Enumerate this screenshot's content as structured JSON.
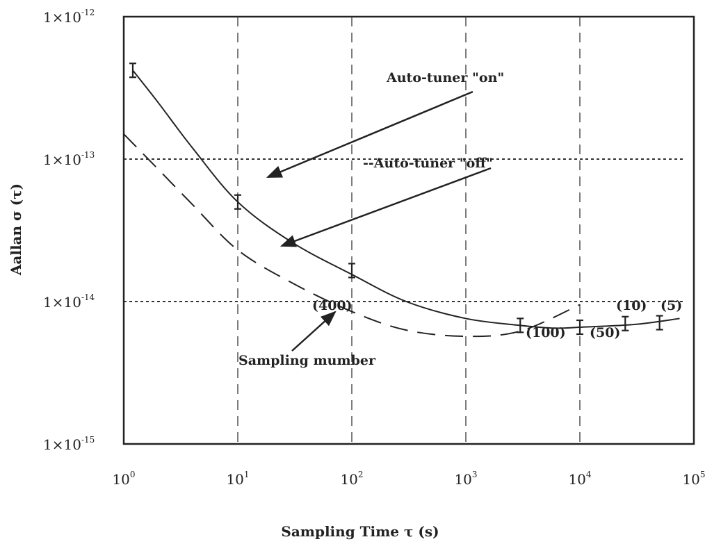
{
  "chart_data": {
    "type": "line",
    "title": "",
    "xlabel": "Sampling Time  τ (s)",
    "ylabel": "Aallan σ (τ)",
    "xscale": "log",
    "yscale": "log",
    "xlim": [
      1,
      100000
    ],
    "ylim": [
      1e-15,
      1e-12
    ],
    "grid": "vertical dashed at decades",
    "x_ticks": [
      {
        "base": "10",
        "exp": "0"
      },
      {
        "base": "10",
        "exp": "1"
      },
      {
        "base": "10",
        "exp": "2"
      },
      {
        "base": "10",
        "exp": "3"
      },
      {
        "base": "10",
        "exp": "4"
      },
      {
        "base": "10",
        "exp": "5"
      }
    ],
    "y_ticks": [
      {
        "base": "1×10",
        "exp": "-12"
      },
      {
        "base": "1×10",
        "exp": "-13"
      },
      {
        "base": "1×10",
        "exp": "-14"
      },
      {
        "base": "1×10",
        "exp": "-15"
      }
    ],
    "series": [
      {
        "name": "Auto-tuner \"on\"",
        "style": "solid",
        "x": [
          1.2,
          2,
          4,
          10,
          30,
          100,
          300,
          1000,
          3000,
          6000,
          10000,
          30000,
          75000
        ],
        "y": [
          4.2e-13,
          2.5e-13,
          1.2e-13,
          5e-14,
          2.6e-14,
          1.55e-14,
          1e-14,
          7.6e-15,
          6.8e-15,
          6.5e-15,
          6.6e-15,
          6.9e-15,
          7.6e-15
        ],
        "error_bars": {
          "x": [
            1.2,
            10,
            100,
            3000,
            10000,
            25000,
            50000
          ],
          "y": [
            4.2e-13,
            5e-14,
            1.65e-14,
            6.8e-15,
            6.6e-15,
            7e-15,
            7.1e-15
          ]
        }
      },
      {
        "name": "Auto-tuner \"off\"",
        "style": "dashed",
        "x": [
          1,
          2,
          4,
          10,
          30,
          100,
          300,
          1000,
          3000,
          10000
        ],
        "y": [
          1.5e-13,
          8.5e-14,
          4.8e-14,
          2.3e-14,
          1.35e-14,
          8.5e-15,
          6.3e-15,
          5.7e-15,
          6.2e-15,
          9.5e-15
        ]
      }
    ],
    "reference_lines": [
      {
        "y": 1e-13,
        "style": "dotted"
      },
      {
        "y": 1e-14,
        "style": "dotted"
      }
    ],
    "annotations": {
      "on_label": "Auto-tuner \"on\"",
      "off_label": "--Auto-tuner \"off\"",
      "sampling_label": "Sampling mumber",
      "n400": "(400)",
      "n100": "(100)",
      "n50": "(50)",
      "n10": "(10)",
      "n5": "(5)"
    }
  }
}
